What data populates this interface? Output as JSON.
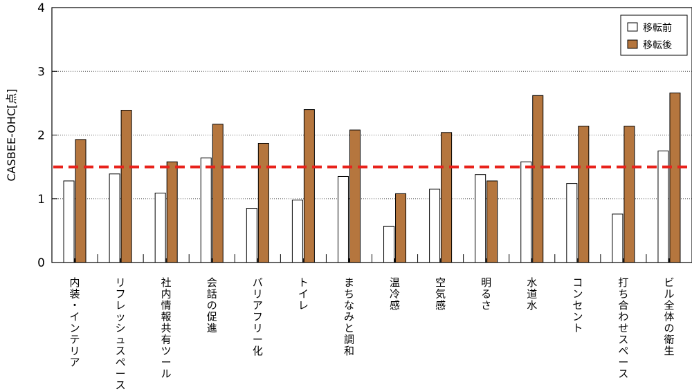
{
  "chart_data": {
    "type": "bar",
    "ylabel": "CASBEE-OHC[点]",
    "ylim": [
      0,
      4
    ],
    "yticks": [
      0,
      1,
      2,
      3,
      4
    ],
    "grid": true,
    "legend_position": "top-right",
    "categories": [
      "内装・インテリア",
      "リフレッシュスペース",
      "社内情報共有ツール",
      "会話の促進",
      "バリアフリー化",
      "トイレ",
      "まちなみと調和",
      "温冷感",
      "空気感",
      "明るさ",
      "水道水",
      "コンセント",
      "打ち合わせスペース",
      "ビル全体の衛生"
    ],
    "series": [
      {
        "name": "移転前",
        "color": "#ffffff",
        "values": [
          1.28,
          1.39,
          1.09,
          1.64,
          0.85,
          0.98,
          1.35,
          0.57,
          1.15,
          1.38,
          1.58,
          1.24,
          0.76,
          1.75
        ]
      },
      {
        "name": "移転後",
        "color": "#b5763e",
        "values": [
          1.93,
          2.39,
          1.58,
          2.17,
          1.87,
          2.4,
          2.08,
          1.08,
          2.04,
          1.28,
          2.62,
          2.14,
          2.14,
          2.66
        ]
      }
    ],
    "reference_line": {
      "value": 1.5,
      "color": "#e8221b"
    }
  }
}
